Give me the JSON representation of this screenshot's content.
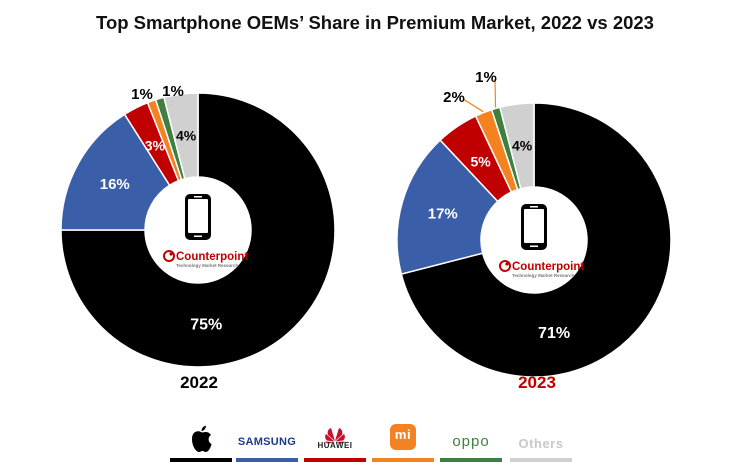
{
  "chart_data": [
    {
      "type": "pie",
      "title": "Top Smartphone OEMs' Share in Premium Market, 2022 vs 2023",
      "year": "2022",
      "labels": [
        "Apple",
        "Samsung",
        "Huawei",
        "Xiaomi",
        "Oppo",
        "Others"
      ],
      "values": [
        75,
        16,
        3,
        1,
        1,
        4
      ],
      "value_labels": [
        "75%",
        "16%",
        "3%",
        "1%",
        "1%",
        "4%"
      ]
    },
    {
      "type": "pie",
      "title": "Top Smartphone OEMs' Share in Premium Market, 2022 vs 2023",
      "year": "2023",
      "labels": [
        "Apple",
        "Samsung",
        "Huawei",
        "Xiaomi",
        "Oppo",
        "Others"
      ],
      "values": [
        71,
        17,
        5,
        2,
        1,
        4
      ],
      "value_labels": [
        "71%",
        "17%",
        "5%",
        "2%",
        "1%",
        "4%"
      ]
    }
  ],
  "title": "Top Smartphone OEMs’ Share in Premium Market, 2022 vs 2023",
  "brand": {
    "name": "Counterpoint",
    "tagline": "Technology Market Research"
  },
  "legend": [
    {
      "name": "Apple",
      "color": "#000000",
      "icon": "apple-logo-icon"
    },
    {
      "name": "SAMSUNG",
      "color": "#3a5ea8",
      "icon": "samsung-wordmark"
    },
    {
      "name": "HUAWEI",
      "color": "#c00000",
      "icon": "huawei-logo-icon"
    },
    {
      "name": "mi",
      "color": "#f58220",
      "icon": "xiaomi-logo-icon"
    },
    {
      "name": "oppo",
      "color": "#3f7f3f",
      "icon": "oppo-wordmark"
    },
    {
      "name": "Others",
      "color": "#d0d0d0",
      "icon": "others-label"
    }
  ],
  "colors": [
    "#000000",
    "#3a5ea8",
    "#c00000",
    "#f58220",
    "#3f7f3f",
    "#d0d0d0"
  ]
}
